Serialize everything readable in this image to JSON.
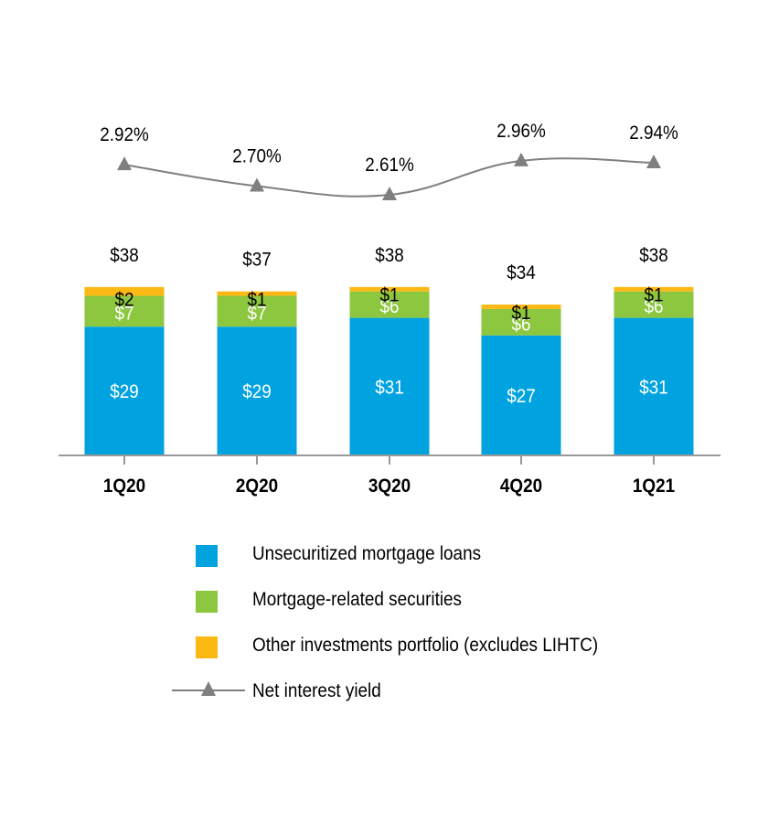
{
  "chart_data": {
    "type": "bar",
    "stacked": true,
    "categories": [
      "1Q20",
      "2Q20",
      "3Q20",
      "4Q20",
      "1Q21"
    ],
    "series": [
      {
        "name": "Unsecuritized mortgage loans",
        "values": [
          29,
          29,
          31,
          27,
          31
        ],
        "labels": [
          "$29",
          "$29",
          "$31",
          "$27",
          "$31"
        ],
        "color": "#00A3E0"
      },
      {
        "name": "Mortgage-related securities",
        "values": [
          7,
          7,
          6,
          6,
          6
        ],
        "labels": [
          "$7",
          "$7",
          "$6",
          "$6",
          "$6"
        ],
        "color": "#8DC63F"
      },
      {
        "name": "Other investments portfolio (excludes LIHTC)",
        "values": [
          2,
          1,
          1,
          1,
          1
        ],
        "labels": [
          "$2",
          "$1",
          "$1",
          "$1",
          "$1"
        ],
        "color": "#FDB913"
      }
    ],
    "totals": [
      "$38",
      "$37",
      "$38",
      "$34",
      "$38"
    ],
    "total_values": [
      38,
      37,
      38,
      34,
      38
    ],
    "line_series": {
      "name": "Net interest yield",
      "values": [
        2.92,
        2.7,
        2.61,
        2.96,
        2.94
      ],
      "labels": [
        "2.92%",
        "2.70%",
        "2.61%",
        "2.96%",
        "2.94%"
      ],
      "color": "#7F7F7F"
    },
    "title": "",
    "xlabel": "",
    "ylabel": "",
    "grid": false,
    "legend_position": "bottom"
  }
}
